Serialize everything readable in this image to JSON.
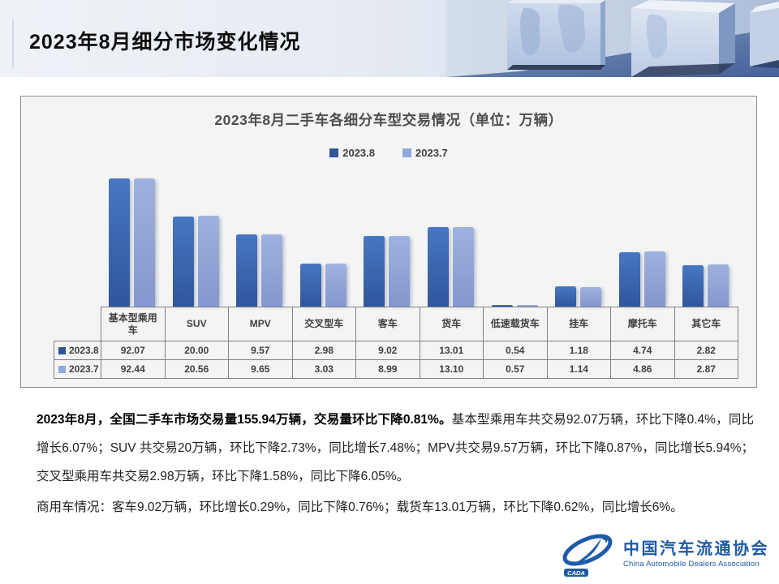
{
  "header": {
    "title": "2023年8月细分市场变化情况"
  },
  "chart": {
    "title": "2023年8月二手车各细分车型交易情况（单位：万辆）"
  },
  "chart_data": {
    "type": "bar",
    "title": "2023年8月二手车各细分车型交易情况（单位：万辆）",
    "xlabel": "",
    "ylabel": "万辆",
    "axis_scale": "log",
    "grid": false,
    "legend_position": "top",
    "data_table_shown": true,
    "categories": [
      "基本型乘用车",
      "SUV",
      "MPV",
      "交叉型车",
      "客车",
      "货车",
      "低速载货车",
      "挂车",
      "摩托车",
      "其它车"
    ],
    "series": [
      {
        "name": "2023.8",
        "color": "#2F5597",
        "color_top": "#4777C2",
        "color_bottom": "#30569C",
        "values": [
          92.07,
          20.0,
          9.57,
          2.98,
          9.02,
          13.01,
          0.54,
          1.18,
          4.74,
          2.82
        ]
      },
      {
        "name": "2023.7",
        "color": "#8FAADC",
        "color_top": "#9EB2DF",
        "color_bottom": "#8497CE",
        "values": [
          92.44,
          20.56,
          9.65,
          3.03,
          8.99,
          13.1,
          0.57,
          1.14,
          4.86,
          2.87
        ]
      }
    ]
  },
  "body": {
    "p1_bold": "2023年8月，全国二手车市场交易量155.94万辆，交易量环比下降0.81%。",
    "p1_rest": "基本型乘用车共交易92.07万辆，环比下降0.4%，同比增长6.07%；SUV 共交易20万辆，环比下降2.73%，同比增长7.48%；MPV共交易9.57万辆，环比下降0.87%，同比增长5.94%；交叉型乘用车共交易2.98万辆，环比下降1.58%，同比下降6.05%。",
    "p2": "商用车情况：客车9.02万辆，环比增长0.29%，同比下降0.76%；载货车13.01万辆，环比下降0.62%，同比增长6%。"
  },
  "logo": {
    "name_cn": "中国汽车流通协会",
    "name_en": "China Automobile Dealers Association",
    "mark_label": "CADA",
    "brand_color": "#1E5AA8"
  }
}
